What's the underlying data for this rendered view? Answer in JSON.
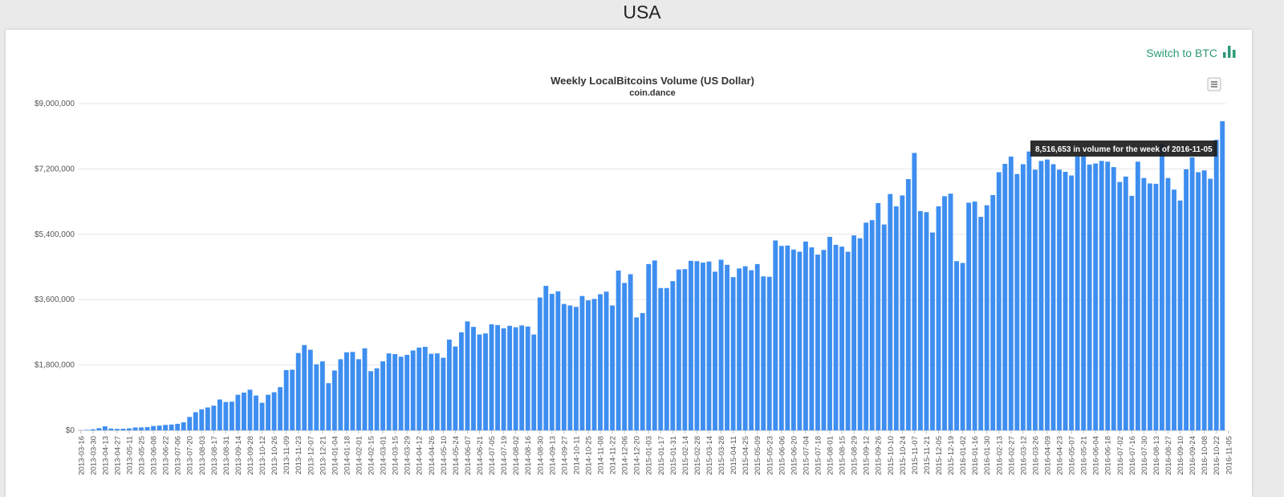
{
  "page": {
    "title": "USA"
  },
  "switch": {
    "label": "Switch to BTC",
    "icon": "bar-chart-icon",
    "color": "#2e9a7a"
  },
  "menu": {
    "icon": "hamburger-menu-icon"
  },
  "tooltip": {
    "text": "8,516,653 in volume for the week of 2016-11-05"
  },
  "chart_data": {
    "type": "bar",
    "title": "Weekly LocalBitcoins Volume (US Dollar)",
    "subtitle": "coin.dance",
    "bar_color": "#3e8ef0",
    "grid": true,
    "ylim": [
      0,
      9000000
    ],
    "y_ticks": [
      "$0",
      "$1,800,000",
      "$3,600,000",
      "$5,400,000",
      "$7,200,000",
      "$9,000,000"
    ],
    "y_tick_values": [
      0,
      1800000,
      3600000,
      5400000,
      7200000,
      9000000
    ],
    "x_tick_labels": [
      "2013-03-16",
      "2013-03-30",
      "2013-04-13",
      "2013-04-27",
      "2013-05-11",
      "2013-05-25",
      "2013-06-08",
      "2013-06-22",
      "2013-07-06",
      "2013-07-20",
      "2013-08-03",
      "2013-08-17",
      "2013-08-31",
      "2013-09-14",
      "2013-09-28",
      "2013-10-12",
      "2013-10-26",
      "2013-11-09",
      "2013-11-23",
      "2013-12-07",
      "2013-12-21",
      "2014-01-04",
      "2014-01-18",
      "2014-02-01",
      "2014-02-15",
      "2014-03-01",
      "2014-03-15",
      "2014-03-29",
      "2014-04-12",
      "2014-04-26",
      "2014-05-10",
      "2014-05-24",
      "2014-06-07",
      "2014-06-21",
      "2014-07-05",
      "2014-07-19",
      "2014-08-02",
      "2014-08-16",
      "2014-08-30",
      "2014-09-13",
      "2014-09-27",
      "2014-10-11",
      "2014-10-25",
      "2014-11-08",
      "2014-11-22",
      "2014-12-06",
      "2014-12-20",
      "2015-01-03",
      "2015-01-17",
      "2015-01-31",
      "2015-02-14",
      "2015-02-28",
      "2015-03-14",
      "2015-03-28",
      "2015-04-11",
      "2015-04-25",
      "2015-05-09",
      "2015-05-23",
      "2015-06-06",
      "2015-06-20",
      "2015-07-04",
      "2015-07-18",
      "2015-08-01",
      "2015-08-15",
      "2015-08-29",
      "2015-09-12",
      "2015-09-26",
      "2015-10-10",
      "2015-10-24",
      "2015-11-07",
      "2015-11-21",
      "2015-12-05",
      "2015-12-19",
      "2016-01-02",
      "2016-01-16",
      "2016-01-30",
      "2016-02-13",
      "2016-02-27",
      "2016-03-12",
      "2016-03-26",
      "2016-04-09",
      "2016-04-23",
      "2016-05-07",
      "2016-05-21",
      "2016-06-04",
      "2016-06-18",
      "2016-07-02",
      "2016-07-16",
      "2016-07-30",
      "2016-08-13",
      "2016-08-27",
      "2016-09-10",
      "2016-09-24",
      "2016-10-08",
      "2016-10-22",
      "2016-11-05"
    ],
    "values": [
      5000,
      15000,
      30000,
      60000,
      110000,
      50000,
      40000,
      45000,
      55000,
      80000,
      80000,
      90000,
      120000,
      130000,
      150000,
      160000,
      180000,
      220000,
      370000,
      500000,
      580000,
      630000,
      680000,
      850000,
      780000,
      790000,
      980000,
      1040000,
      1120000,
      960000,
      760000,
      980000,
      1050000,
      1190000,
      1660000,
      1670000,
      2130000,
      2350000,
      2220000,
      1820000,
      1900000,
      1300000,
      1650000,
      1960000,
      2150000,
      2160000,
      1960000,
      2260000,
      1630000,
      1710000,
      1900000,
      2120000,
      2100000,
      2030000,
      2080000,
      2200000,
      2280000,
      2300000,
      2110000,
      2120000,
      2000000,
      2500000,
      2310000,
      2700000,
      3000000,
      2850000,
      2640000,
      2670000,
      2920000,
      2900000,
      2810000,
      2880000,
      2840000,
      2890000,
      2860000,
      2640000,
      3660000,
      3980000,
      3760000,
      3830000,
      3480000,
      3440000,
      3400000,
      3700000,
      3580000,
      3620000,
      3750000,
      3820000,
      3440000,
      4400000,
      4060000,
      4300000,
      3110000,
      3230000,
      4580000,
      4680000,
      3920000,
      3920000,
      4110000,
      4430000,
      4440000,
      4670000,
      4660000,
      4620000,
      4650000,
      4370000,
      4700000,
      4560000,
      4220000,
      4460000,
      4520000,
      4410000,
      4580000,
      4240000,
      4230000,
      5230000,
      5080000,
      5090000,
      4980000,
      4920000,
      5200000,
      5040000,
      4840000,
      4970000,
      5330000,
      5110000,
      5060000,
      4920000,
      5370000,
      5290000,
      5720000,
      5790000,
      6260000,
      5670000,
      6510000,
      6170000,
      6470000,
      6920000,
      7640000,
      6040000,
      6010000,
      5450000,
      6170000,
      6450000,
      6520000,
      4660000,
      4610000,
      6270000,
      6300000,
      5880000,
      6200000,
      6480000,
      7110000,
      7340000,
      7540000,
      7060000,
      7330000,
      7680000,
      7180000,
      7420000,
      7460000,
      7330000,
      7180000,
      7120000,
      7020000,
      7540000,
      7560000,
      7320000,
      7350000,
      7420000,
      7400000,
      7250000,
      6840000,
      6990000,
      6460000,
      7400000,
      6950000,
      6800000,
      6790000,
      7900000,
      6950000,
      6630000,
      6330000,
      7190000,
      7520000,
      7110000,
      7160000,
      6930000,
      8000000,
      8516653
    ]
  }
}
